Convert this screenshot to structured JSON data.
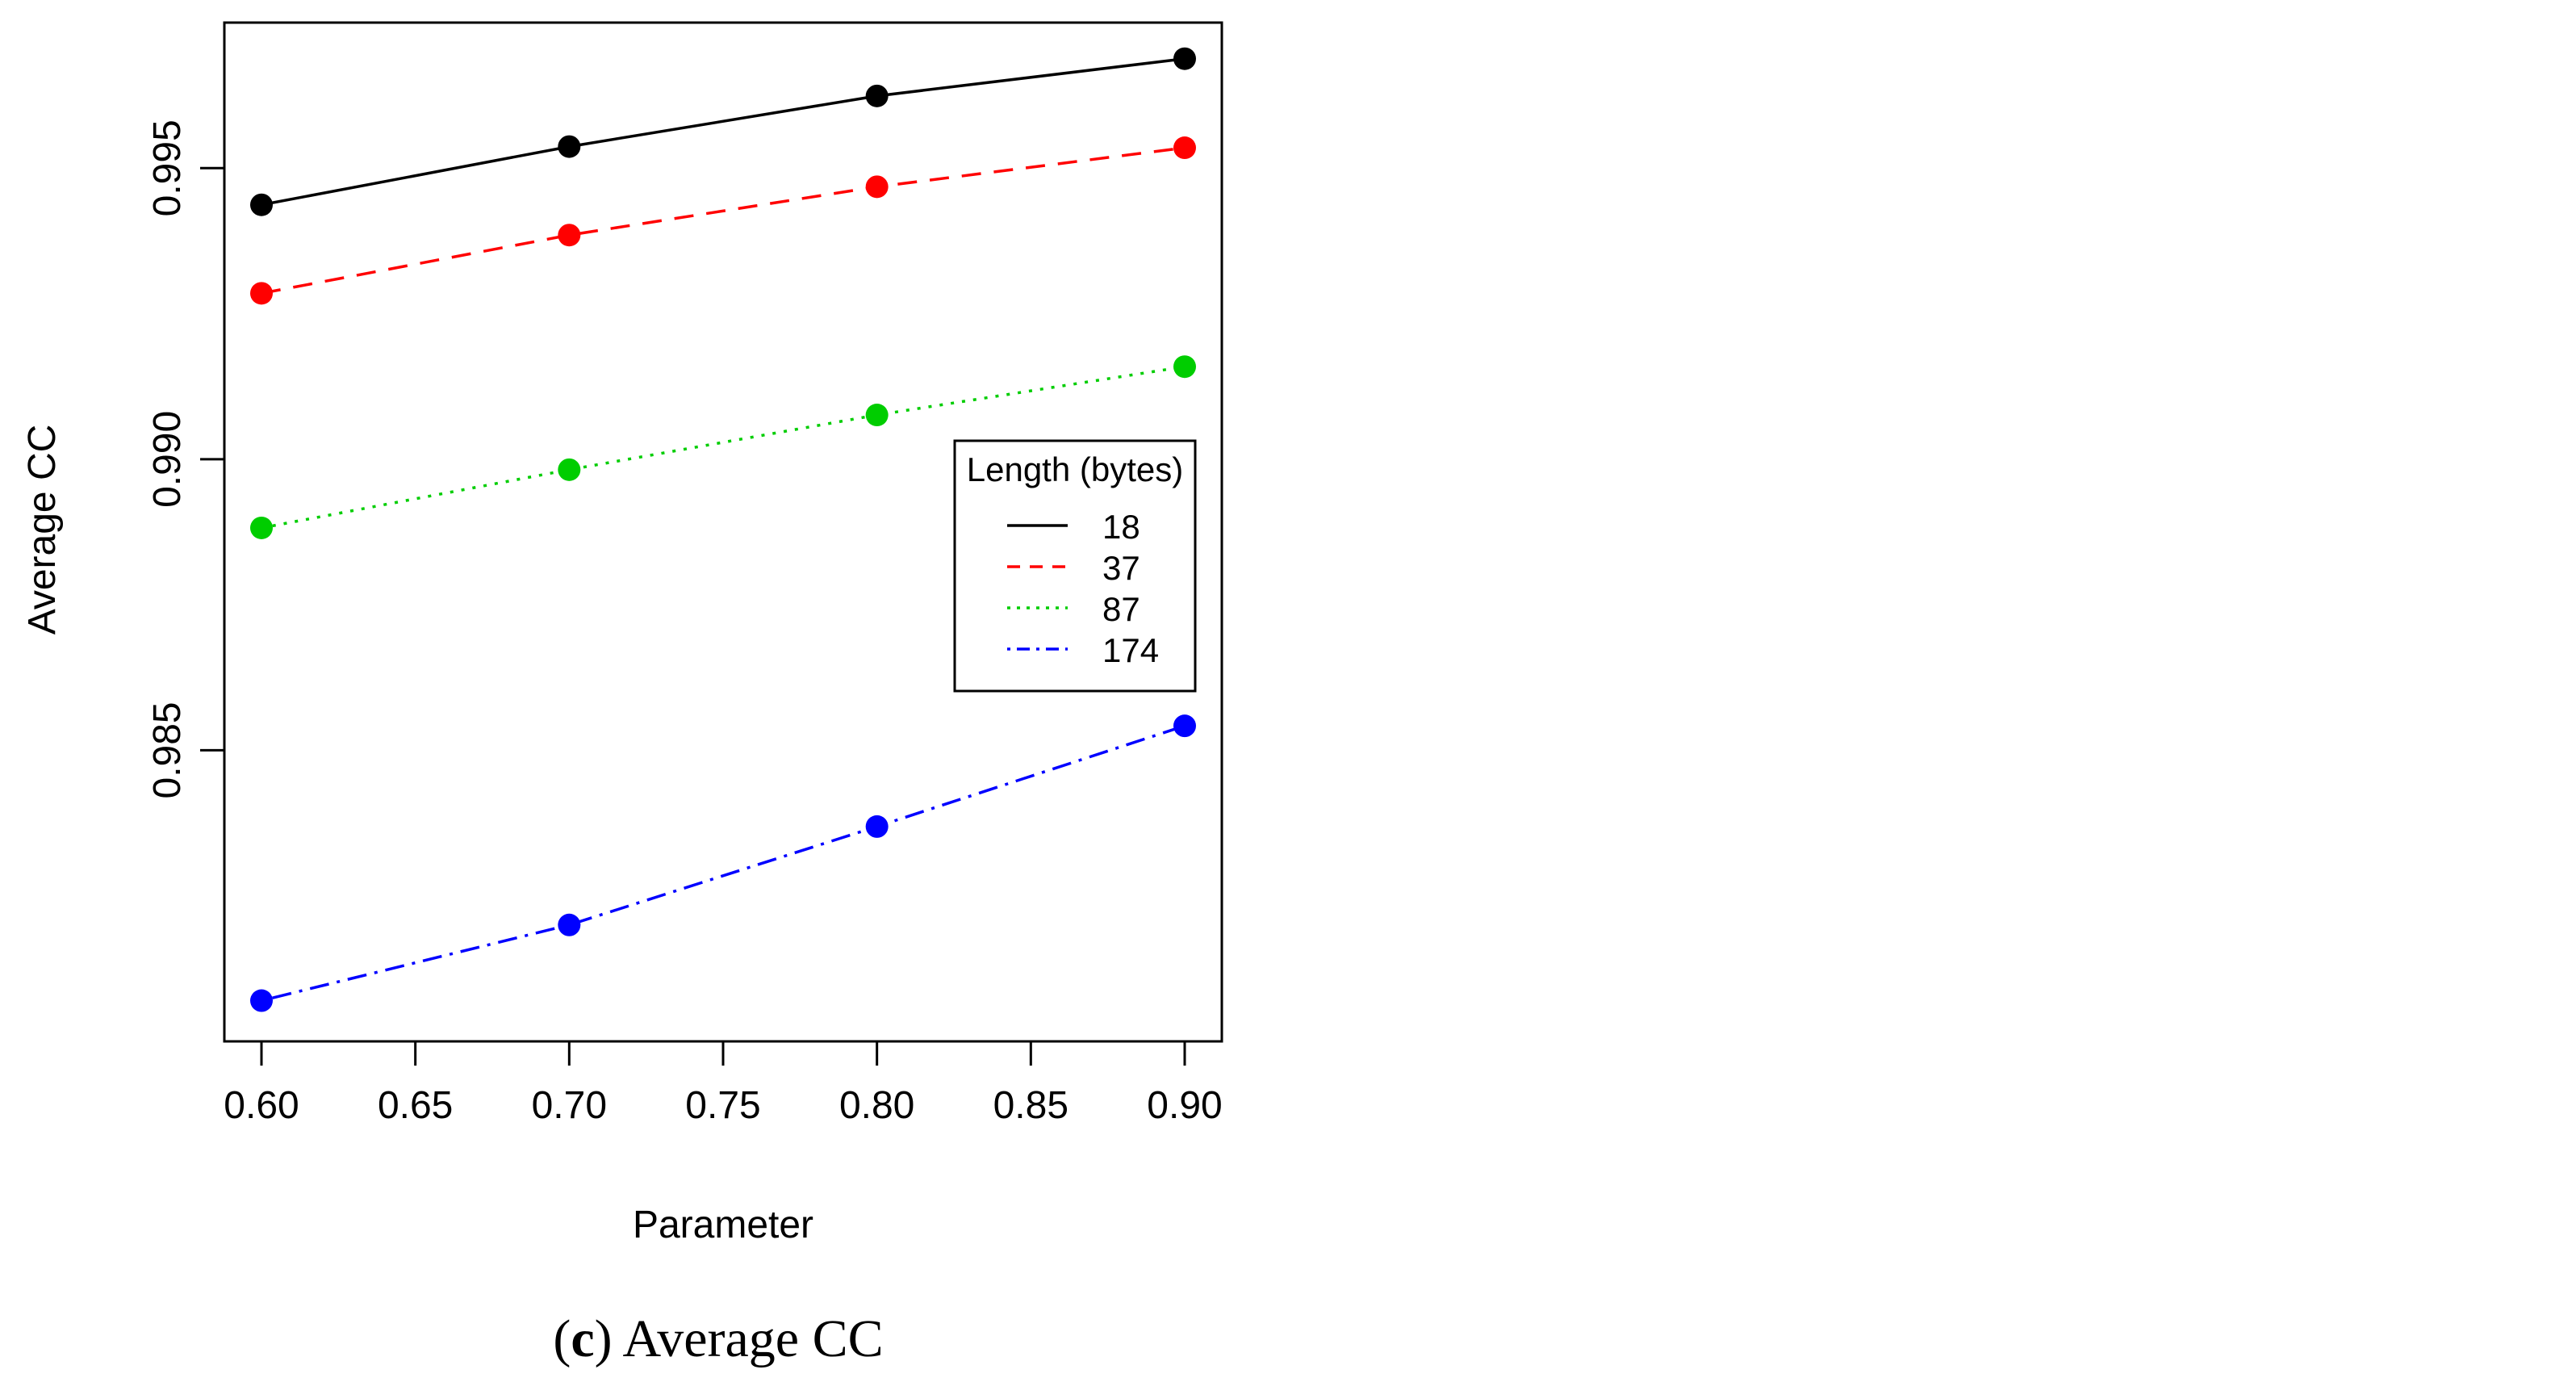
{
  "chart_data": {
    "type": "line",
    "title": "",
    "xlabel": "Parameter",
    "ylabel": "Average CC",
    "x": [
      0.6,
      0.7,
      0.8,
      0.9
    ],
    "xlim": [
      0.6,
      0.9
    ],
    "ylim": [
      0.98,
      0.9975
    ],
    "xticks": [
      "0.60",
      "0.65",
      "0.70",
      "0.75",
      "0.80",
      "0.85",
      "0.90"
    ],
    "yticks": [
      "0.985",
      "0.990",
      "0.995"
    ],
    "grid": false,
    "legend": {
      "title": "Length (bytes)",
      "position": "right-middle"
    },
    "series": [
      {
        "name": "18",
        "color": "#000000",
        "dash": "solid",
        "values": [
          0.99437,
          0.99537,
          0.99624,
          0.99688
        ]
      },
      {
        "name": "37",
        "color": "#ff0000",
        "dash": "dashed",
        "values": [
          0.99285,
          0.99385,
          0.99468,
          0.99535
        ]
      },
      {
        "name": "87",
        "color": "#00cd00",
        "dash": "dotted",
        "values": [
          0.98882,
          0.98982,
          0.99076,
          0.99159
        ]
      },
      {
        "name": "174",
        "color": "#0000ff",
        "dash": "dotdash",
        "values": [
          0.9807,
          0.982,
          0.98369,
          0.98542
        ]
      }
    ]
  },
  "caption": {
    "label": "c",
    "text": "Average CC"
  }
}
